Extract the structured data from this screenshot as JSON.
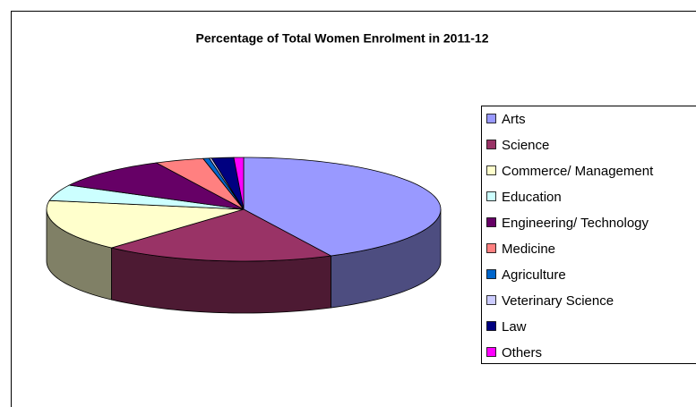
{
  "chart_data": {
    "type": "pie3d",
    "title": "Percentage of Total Women Enrolment in 2011-12",
    "categories": [
      "Arts",
      "Science",
      "Commerce/ Management",
      "Education",
      "Engineering/ Technology",
      "Medicine",
      "Agriculture",
      "Veterinary Science",
      "Law",
      "Others"
    ],
    "values": [
      42.7,
      19,
      16,
      5,
      10,
      4,
      0.5,
      0.2,
      1.8,
      0.8
    ],
    "colors": [
      "#9999ff",
      "#993366",
      "#ffffcc",
      "#ccffff",
      "#660066",
      "#ff8080",
      "#0066cc",
      "#ccccff",
      "#000080",
      "#ff00ff"
    ],
    "legend": "right"
  }
}
